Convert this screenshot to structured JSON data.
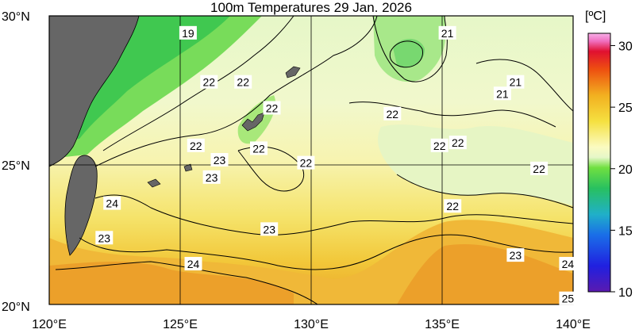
{
  "title": "100m Temperatures  29 Jan. 2026",
  "colorbar": {
    "unit": "[ºC]",
    "ticks": [
      "30",
      "25",
      "20",
      "15",
      "10"
    ],
    "range": [
      10,
      31
    ]
  },
  "axes": {
    "lat_labels": [
      "30°N",
      "25°N",
      "20°N"
    ],
    "lon_labels": [
      "120°E",
      "125°E",
      "130°E",
      "135°E",
      "140°E"
    ]
  },
  "contour_labels": [
    {
      "text": "19",
      "lon": 125.3,
      "lat": 29.4
    },
    {
      "text": "21",
      "lon": 135.2,
      "lat": 29.4
    },
    {
      "text": "22",
      "lon": 126.1,
      "lat": 27.7
    },
    {
      "text": "22",
      "lon": 127.4,
      "lat": 27.7
    },
    {
      "text": "22",
      "lon": 128.5,
      "lat": 26.8
    },
    {
      "text": "22",
      "lon": 133.1,
      "lat": 26.6
    },
    {
      "text": "21",
      "lon": 137.8,
      "lat": 27.7
    },
    {
      "text": "21",
      "lon": 137.3,
      "lat": 27.3
    },
    {
      "text": "22",
      "lon": 125.6,
      "lat": 25.5
    },
    {
      "text": "22",
      "lon": 128.0,
      "lat": 25.4
    },
    {
      "text": "22",
      "lon": 134.9,
      "lat": 25.5
    },
    {
      "text": "22",
      "lon": 135.6,
      "lat": 25.6
    },
    {
      "text": "23",
      "lon": 126.5,
      "lat": 25.0
    },
    {
      "text": "22",
      "lon": 129.8,
      "lat": 24.9
    },
    {
      "text": "23",
      "lon": 126.2,
      "lat": 24.4
    },
    {
      "text": "22",
      "lon": 138.7,
      "lat": 24.7
    },
    {
      "text": "24",
      "lon": 122.4,
      "lat": 23.5
    },
    {
      "text": "22",
      "lon": 135.4,
      "lat": 23.4
    },
    {
      "text": "23",
      "lon": 122.1,
      "lat": 22.3
    },
    {
      "text": "23",
      "lon": 128.4,
      "lat": 22.6
    },
    {
      "text": "24",
      "lon": 125.5,
      "lat": 21.4
    },
    {
      "text": "23",
      "lon": 137.8,
      "lat": 21.7
    },
    {
      "text": "24",
      "lon": 139.8,
      "lat": 21.4
    },
    {
      "text": "25",
      "lon": 139.8,
      "lat": 20.2
    }
  ]
}
